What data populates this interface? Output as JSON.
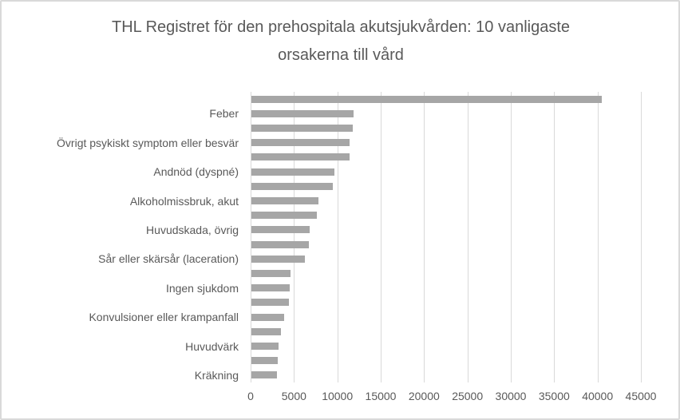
{
  "chart_data": {
    "type": "bar",
    "orientation": "horizontal",
    "title": "THL Registret för den prehospitala akutsjukvården: 10 vanligaste orsakerna till vård",
    "xlabel": "",
    "ylabel": "",
    "legend": "none",
    "gridlines": "vertical",
    "label_interval": 2,
    "x_axis": {
      "min": 0,
      "max": 45000,
      "tick_interval": 5000,
      "ticks": [
        0,
        5000,
        10000,
        15000,
        20000,
        25000,
        30000,
        35000,
        40000,
        45000
      ]
    },
    "bars": [
      {
        "label": "",
        "value": 40400
      },
      {
        "label": "Feber",
        "value": 11800
      },
      {
        "label": "",
        "value": 11700
      },
      {
        "label": "Övrigt psykiskt symptom eller besvär",
        "value": 11300
      },
      {
        "label": "",
        "value": 11300
      },
      {
        "label": "Andnöd (dyspné)",
        "value": 9600
      },
      {
        "label": "",
        "value": 9400
      },
      {
        "label": "Alkoholmissbruk, akut",
        "value": 7700
      },
      {
        "label": "",
        "value": 7500
      },
      {
        "label": "Huvudskada, övrig",
        "value": 6700
      },
      {
        "label": "",
        "value": 6600
      },
      {
        "label": "Sår eller skärsår (laceration)",
        "value": 6200
      },
      {
        "label": "",
        "value": 4500
      },
      {
        "label": "Ingen sjukdom",
        "value": 4400
      },
      {
        "label": "",
        "value": 4300
      },
      {
        "label": "Konvulsioner eller krampanfall",
        "value": 3800
      },
      {
        "label": "",
        "value": 3400
      },
      {
        "label": "Huvudvärk",
        "value": 3100
      },
      {
        "label": "",
        "value": 3000
      },
      {
        "label": "Kräkning",
        "value": 2900
      }
    ],
    "colors": {
      "bar": "#a6a6a6",
      "gridline": "#d9d9d9",
      "text": "#595959",
      "border": "#d9d9d9",
      "background": "#ffffff"
    }
  }
}
